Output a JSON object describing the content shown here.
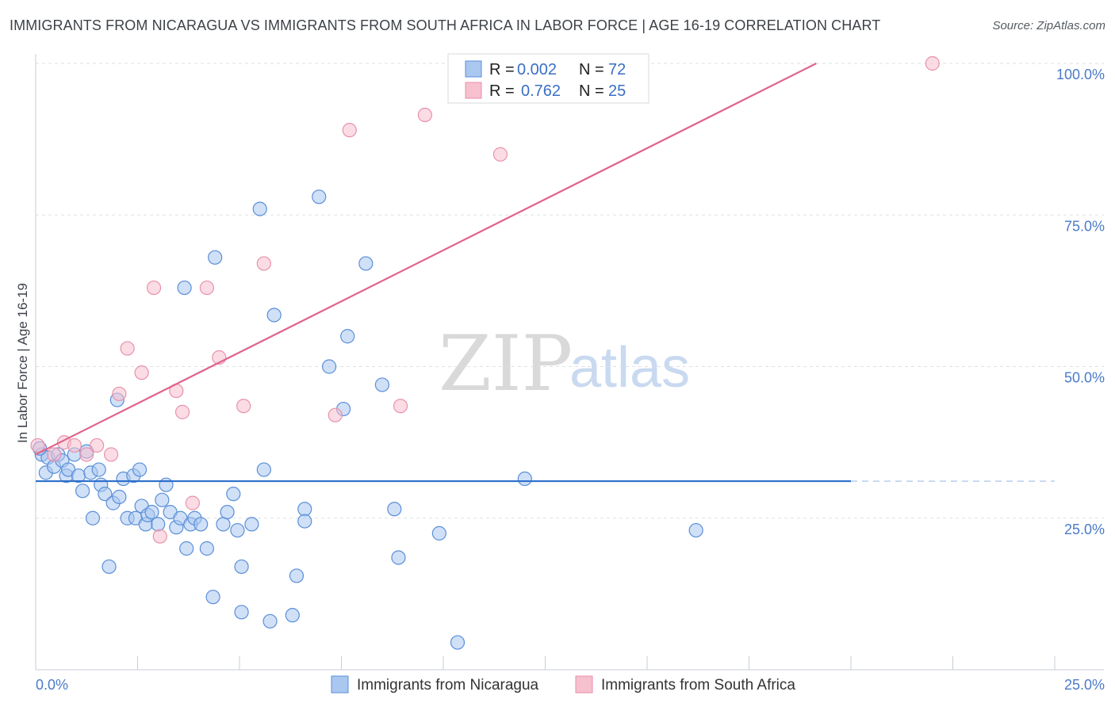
{
  "title": "IMMIGRANTS FROM NICARAGUA VS IMMIGRANTS FROM SOUTH AFRICA IN LABOR FORCE | AGE 16-19 CORRELATION CHART",
  "source": "Source: ZipAtlas.com",
  "watermark": {
    "zip": "ZIP",
    "atlas": "atlas"
  },
  "colors": {
    "blue_fill": "#aac7f0",
    "blue_stroke": "#5a8fd8",
    "blue_line": "#2d6fcb",
    "pink_fill": "#f7c0cf",
    "pink_stroke": "#e891aa",
    "pink_line": "#e0628a",
    "grid": "#dde1e6",
    "tick_text": "#4a7bc8"
  },
  "legend": {
    "rows": [
      {
        "r_label": "R =",
        "r_value": "0.002",
        "n_label": "N =",
        "n_value": "72"
      },
      {
        "r_label": "R =",
        "r_value": "0.762",
        "n_label": "N =",
        "n_value": "25"
      }
    ]
  },
  "bottom_legend": [
    "Immigrants from Nicaragua",
    "Immigrants from South Africa"
  ],
  "chart_data": {
    "type": "scatter",
    "ylabel": "In Labor Force | Age 16-19",
    "xlabel": "",
    "xlim": [
      0,
      25
    ],
    "ylim": [
      0,
      100
    ],
    "x_tick_labels": [
      "0.0%",
      "25.0%"
    ],
    "y_tick_labels": [
      "25.0%",
      "50.0%",
      "75.0%",
      "100.0%"
    ],
    "y_ticks": [
      25,
      50,
      75,
      100
    ],
    "series": [
      {
        "name": "Immigrants from Nicaragua",
        "color": "blue",
        "trend": {
          "x0": 0,
          "y0": 31.1,
          "x1": 20,
          "y1": 31.1,
          "dash_to": 25
        },
        "points": [
          [
            0.15,
            35.5
          ],
          [
            0.25,
            32.5
          ],
          [
            0.3,
            35.0
          ],
          [
            0.45,
            33.5
          ],
          [
            0.55,
            35.5
          ],
          [
            0.65,
            34.5
          ],
          [
            0.75,
            32.0
          ],
          [
            0.8,
            33.0
          ],
          [
            0.95,
            35.5
          ],
          [
            1.05,
            32.0
          ],
          [
            1.15,
            29.5
          ],
          [
            1.25,
            36.0
          ],
          [
            1.35,
            32.5
          ],
          [
            1.4,
            25.0
          ],
          [
            1.55,
            33.0
          ],
          [
            1.6,
            30.5
          ],
          [
            1.7,
            29.0
          ],
          [
            1.8,
            17.0
          ],
          [
            1.9,
            27.5
          ],
          [
            2.0,
            44.5
          ],
          [
            2.05,
            28.5
          ],
          [
            2.15,
            31.5
          ],
          [
            2.25,
            25.0
          ],
          [
            2.4,
            32.0
          ],
          [
            2.45,
            25.0
          ],
          [
            2.55,
            33.0
          ],
          [
            2.6,
            27.0
          ],
          [
            2.7,
            24.0
          ],
          [
            2.75,
            25.5
          ],
          [
            2.85,
            26.0
          ],
          [
            3.0,
            24.0
          ],
          [
            3.1,
            28.0
          ],
          [
            3.2,
            30.5
          ],
          [
            3.3,
            26.0
          ],
          [
            3.45,
            23.5
          ],
          [
            3.55,
            25.0
          ],
          [
            3.65,
            63.0
          ],
          [
            3.7,
            20.0
          ],
          [
            3.8,
            24.0
          ],
          [
            3.9,
            25.0
          ],
          [
            4.05,
            24.0
          ],
          [
            4.2,
            20.0
          ],
          [
            4.35,
            12.0
          ],
          [
            4.4,
            68.0
          ],
          [
            4.6,
            24.0
          ],
          [
            4.7,
            26.0
          ],
          [
            4.85,
            29.0
          ],
          [
            4.95,
            23.0
          ],
          [
            5.05,
            9.5
          ],
          [
            5.05,
            17.0
          ],
          [
            5.3,
            24.0
          ],
          [
            5.5,
            76.0
          ],
          [
            5.6,
            33.0
          ],
          [
            5.75,
            8.0
          ],
          [
            5.85,
            58.5
          ],
          [
            6.3,
            9.0
          ],
          [
            6.4,
            15.5
          ],
          [
            6.6,
            26.5
          ],
          [
            6.6,
            24.5
          ],
          [
            6.95,
            78.0
          ],
          [
            7.2,
            50.0
          ],
          [
            7.55,
            43.0
          ],
          [
            7.65,
            55.0
          ],
          [
            8.1,
            67.0
          ],
          [
            8.5,
            47.0
          ],
          [
            8.8,
            26.5
          ],
          [
            8.9,
            18.5
          ],
          [
            9.9,
            22.5
          ],
          [
            10.35,
            4.5
          ],
          [
            12.0,
            31.5
          ],
          [
            16.2,
            23.0
          ],
          [
            0.1,
            36.5
          ]
        ]
      },
      {
        "name": "Immigrants from South Africa",
        "color": "pink",
        "trend": {
          "x0": 0,
          "y0": 35.5,
          "x1": 19.15,
          "y1": 100
        },
        "points": [
          [
            0.05,
            37.0
          ],
          [
            0.45,
            35.5
          ],
          [
            0.7,
            37.5
          ],
          [
            0.95,
            37.0
          ],
          [
            1.25,
            35.5
          ],
          [
            1.5,
            37.0
          ],
          [
            1.85,
            35.5
          ],
          [
            2.05,
            45.5
          ],
          [
            2.25,
            53.0
          ],
          [
            2.6,
            49.0
          ],
          [
            2.9,
            63.0
          ],
          [
            3.05,
            22.0
          ],
          [
            3.45,
            46.0
          ],
          [
            3.6,
            42.5
          ],
          [
            3.85,
            27.5
          ],
          [
            4.2,
            63.0
          ],
          [
            4.5,
            51.5
          ],
          [
            5.1,
            43.5
          ],
          [
            5.6,
            67.0
          ],
          [
            7.35,
            42.0
          ],
          [
            7.7,
            89.0
          ],
          [
            8.95,
            43.5
          ],
          [
            9.55,
            91.5
          ],
          [
            11.4,
            85.0
          ],
          [
            22.0,
            100.0
          ]
        ]
      }
    ]
  }
}
